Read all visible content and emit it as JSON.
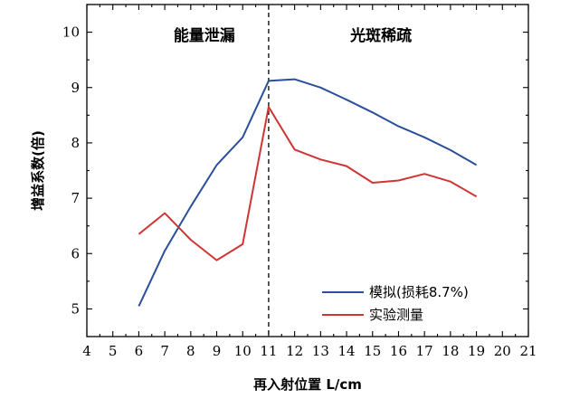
{
  "chart_data": {
    "type": "line",
    "xlabel": "再入射位置 L/cm",
    "ylabel": "增益系数(倍)",
    "xlim": [
      4,
      21
    ],
    "ylim": [
      4.5,
      10.5
    ],
    "x_ticks": [
      4,
      5,
      6,
      7,
      8,
      9,
      10,
      11,
      12,
      13,
      14,
      15,
      16,
      17,
      18,
      19,
      20,
      21
    ],
    "y_ticks": [
      5,
      6,
      7,
      8,
      9,
      10
    ],
    "grid": false,
    "legend_position": "bottom-right",
    "divider_x": 11,
    "annotations": [
      {
        "text": "能量泄漏",
        "x": 8
      },
      {
        "text": "光斑稀疏",
        "x": 15.5
      }
    ],
    "series": [
      {
        "name": "模拟(损耗8.7%)",
        "color": "#2b4f9a",
        "x": [
          6,
          7,
          8,
          9,
          10,
          11,
          12,
          13,
          14,
          15,
          16,
          17,
          18,
          19
        ],
        "y": [
          5.05,
          6.05,
          6.85,
          7.6,
          8.1,
          9.12,
          9.15,
          9.0,
          8.78,
          8.55,
          8.3,
          8.1,
          7.87,
          7.6
        ]
      },
      {
        "name": "实验测量",
        "color": "#d03535",
        "x": [
          6,
          7,
          8,
          9,
          10,
          11,
          12,
          13,
          14,
          15,
          16,
          17,
          18,
          19
        ],
        "y": [
          6.35,
          6.73,
          6.25,
          5.88,
          6.17,
          8.65,
          7.88,
          7.7,
          7.58,
          7.28,
          7.32,
          7.44,
          7.3,
          7.03
        ]
      }
    ]
  }
}
